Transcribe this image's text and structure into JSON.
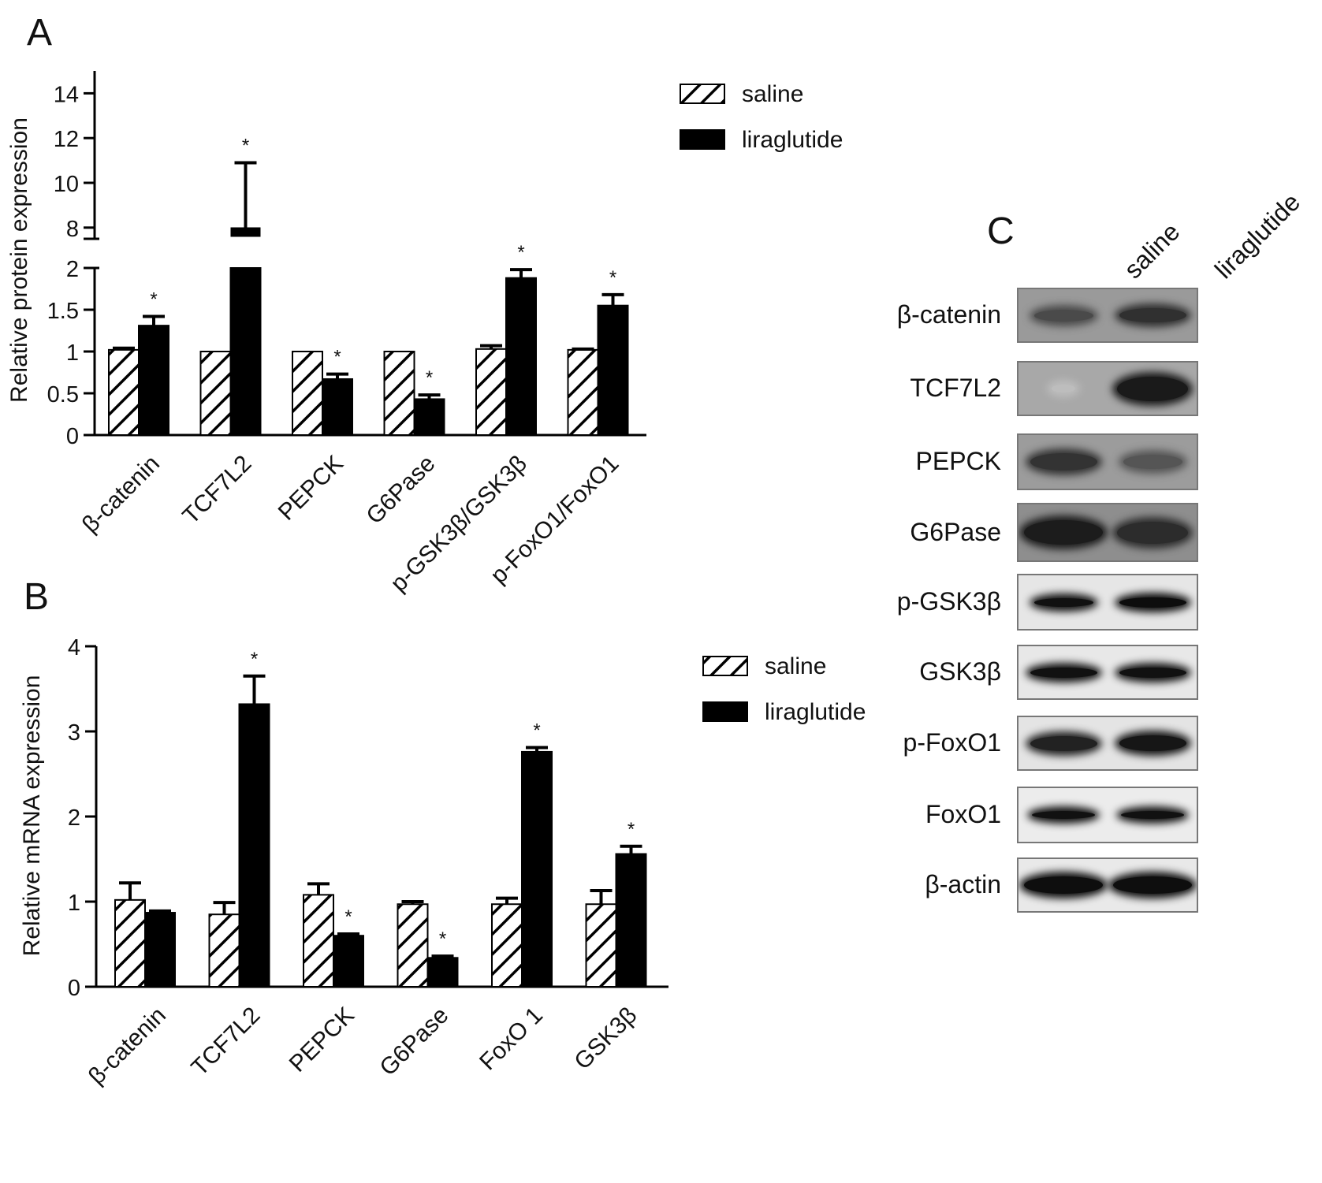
{
  "panels": {
    "a": "A",
    "b": "B",
    "c": "C"
  },
  "chart_data": [
    {
      "type": "bar",
      "panel": "A",
      "ylabel": "Relative protein expression",
      "broken_axis": true,
      "ylim_lower": [
        0,
        2
      ],
      "ylim_upper": [
        7.5,
        15
      ],
      "yticks_lower": [
        "0",
        "0.5",
        "1",
        "1.5",
        "2"
      ],
      "yticks_upper": [
        "8",
        "10",
        "12",
        "14"
      ],
      "categories": [
        "β-catenin",
        "TCF7L2",
        "PEPCK",
        "G6Pase",
        "p-GSK3β/GSK3β",
        "p-FoxO1/FoxO1"
      ],
      "series": [
        {
          "name": "saline",
          "pattern": "hatched",
          "values": [
            1.02,
            1.0,
            1.0,
            1.0,
            1.03,
            1.02
          ],
          "errors": [
            0.02,
            0.0,
            0.0,
            0.0,
            0.04,
            0.01
          ]
        },
        {
          "name": "liraglutide",
          "pattern": "solid",
          "values": [
            1.31,
            7.8,
            0.67,
            0.43,
            1.88,
            1.55
          ],
          "errors": [
            0.11,
            3.1,
            0.06,
            0.05,
            0.1,
            0.13
          ]
        }
      ],
      "significant": [
        false,
        true,
        false,
        true,
        false,
        true,
        false,
        true,
        false,
        true,
        false,
        true
      ],
      "annotation": "*"
    },
    {
      "type": "bar",
      "panel": "B",
      "ylabel": "Relative mRNA expression",
      "ylim": [
        0,
        4
      ],
      "yticks": [
        "0",
        "1",
        "2",
        "3",
        "4"
      ],
      "categories": [
        "β-catenin",
        "TCF7L2",
        "PEPCK",
        "G6Pase",
        "FoxO 1",
        "GSK3β"
      ],
      "series": [
        {
          "name": "saline",
          "pattern": "hatched",
          "values": [
            1.02,
            0.85,
            1.08,
            0.97,
            0.97,
            0.97
          ],
          "errors": [
            0.2,
            0.14,
            0.13,
            0.03,
            0.07,
            0.16
          ]
        },
        {
          "name": "liraglutide",
          "pattern": "solid",
          "values": [
            0.87,
            3.32,
            0.6,
            0.34,
            2.76,
            1.56
          ],
          "errors": [
            0.02,
            0.33,
            0.02,
            0.02,
            0.05,
            0.09
          ]
        }
      ],
      "significant": [
        false,
        false,
        false,
        true,
        false,
        true,
        false,
        true,
        false,
        true,
        false,
        true
      ],
      "annotation": "*"
    }
  ],
  "blot": {
    "lanes": [
      "saline",
      "liraglutide"
    ],
    "rows": [
      {
        "label": "β-catenin"
      },
      {
        "label": "TCF7L2"
      },
      {
        "label": "PEPCK"
      },
      {
        "label": "G6Pase"
      },
      {
        "label": "p-GSK3β"
      },
      {
        "label": "GSK3β"
      },
      {
        "label": "p-FoxO1"
      },
      {
        "label": "FoxO1"
      },
      {
        "label": "β-actin"
      }
    ]
  }
}
